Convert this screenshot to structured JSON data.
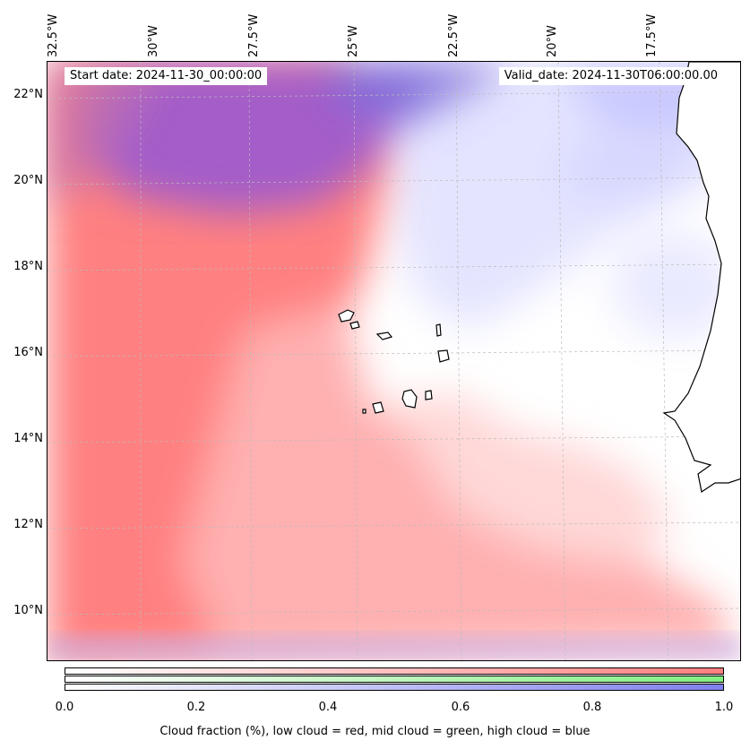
{
  "header": {
    "start_date": "Start date: 2024-11-30_00:00:00",
    "valid_date": "Valid_date: 2024-11-30T06:00:00.00"
  },
  "longitude_labels": [
    "32.5°W",
    "30°W",
    "27.5°W",
    "25°W",
    "22.5°W",
    "20°W",
    "17.5°W"
  ],
  "latitude_labels": [
    "22°N",
    "20°N",
    "18°N",
    "16°N",
    "14°N",
    "12°N",
    "10°N"
  ],
  "colorbar": {
    "ticks": [
      "0.0",
      "0.2",
      "0.4",
      "0.6",
      "0.8",
      "1.0"
    ],
    "caption": "Cloud fraction (%), low cloud = red, mid cloud = green, high cloud = blue",
    "low_color": "#ff7f7f",
    "mid_color": "#80ef80",
    "high_color": "#7f7fef"
  },
  "map": {
    "ocean_color": "#ffffff",
    "coastline_color": "#000000",
    "gridline_color": "#bbbbbb"
  }
}
